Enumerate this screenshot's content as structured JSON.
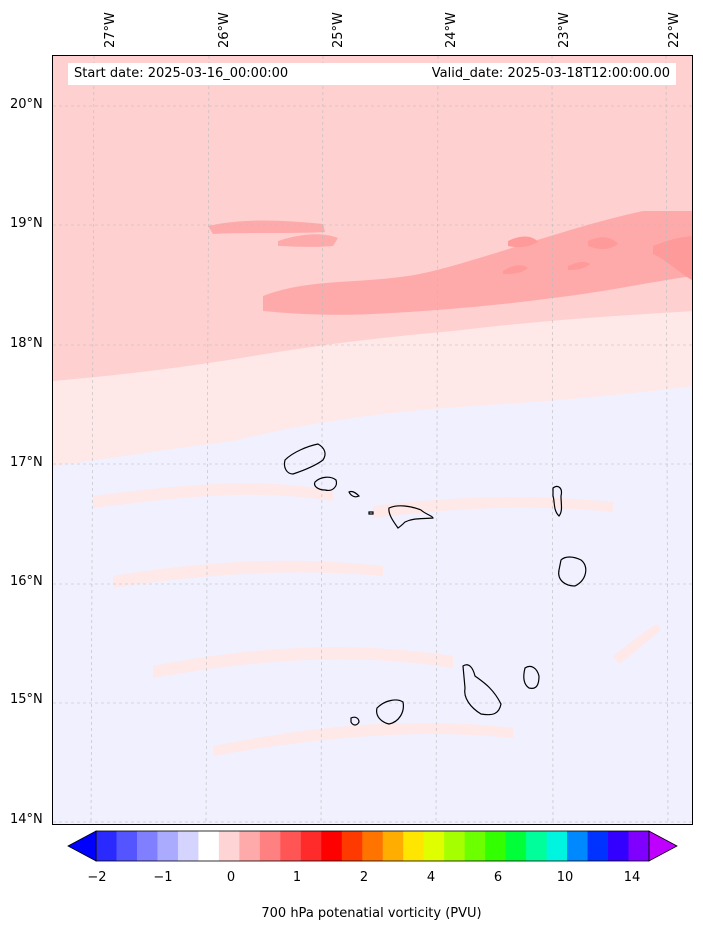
{
  "header": {
    "start_date": "Start date: 2025-03-16_00:00:00",
    "valid_date": "Valid_date: 2025-03-18T12:00:00.00"
  },
  "axes": {
    "longitude_labels": [
      "27°W",
      "26°W",
      "25°W",
      "24°W",
      "23°W",
      "22°W"
    ],
    "latitude_labels": [
      "20°N",
      "19°N",
      "18°N",
      "17°N",
      "16°N",
      "15°N",
      "14°N"
    ]
  },
  "colorbar": {
    "label": "700 hPa potenatial vorticity (PVU)",
    "ticks": [
      "−2",
      "−1",
      "0",
      "1",
      "2",
      "4",
      "6",
      "10",
      "14"
    ],
    "colors": [
      "#0000ff",
      "#2a2aff",
      "#5555ff",
      "#7f7fff",
      "#aaaaff",
      "#d4d4ff",
      "#ffffff",
      "#ffd4d4",
      "#ffaaaa",
      "#ff8080",
      "#ff5555",
      "#ff2a2a",
      "#ff0000",
      "#ff3a00",
      "#ff7300",
      "#ffad00",
      "#ffe600",
      "#dfff00",
      "#a6ff00",
      "#6cff00",
      "#32ff00",
      "#00ff39",
      "#00ff9a",
      "#00f5e0",
      "#0088ff",
      "#0033ff",
      "#3300ff",
      "#8000ff",
      "#c000ff"
    ]
  },
  "map": {
    "region": "Cape Verde",
    "field_colors": {
      "strong_positive": "#ff9a9a",
      "positive": "#ffaaaa",
      "weak_positive": "#ffd0d0",
      "near_zero_positive": "#ffe8e8",
      "near_zero_negative": "#f0f0ff",
      "weak_negative": "#d4d4ff"
    },
    "coastline_color": "#000000"
  }
}
